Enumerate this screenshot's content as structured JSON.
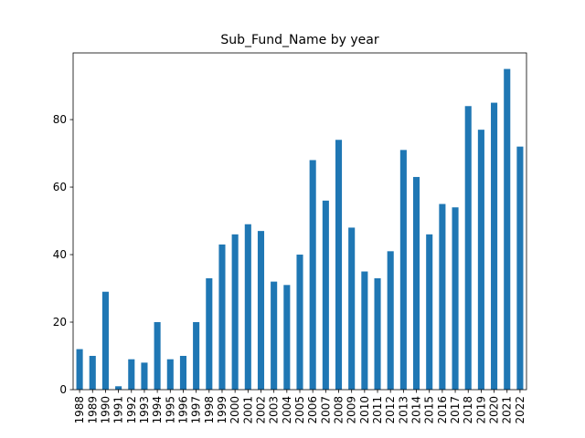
{
  "chart_data": {
    "type": "bar",
    "title": "Sub_Fund_Name by year",
    "xlabel": "",
    "ylabel": "",
    "categories": [
      "1988",
      "1989",
      "1990",
      "1991",
      "1992",
      "1993",
      "1994",
      "1995",
      "1996",
      "1997",
      "1998",
      "1999",
      "2000",
      "2001",
      "2002",
      "2003",
      "2004",
      "2005",
      "2006",
      "2007",
      "2008",
      "2009",
      "2010",
      "2011",
      "2012",
      "2013",
      "2014",
      "2015",
      "2016",
      "2017",
      "2018",
      "2019",
      "2020",
      "2021",
      "2022"
    ],
    "values": [
      12,
      10,
      29,
      1,
      9,
      8,
      20,
      9,
      10,
      20,
      33,
      43,
      46,
      49,
      47,
      32,
      31,
      40,
      68,
      56,
      74,
      48,
      35,
      33,
      41,
      71,
      63,
      46,
      55,
      54,
      84,
      77,
      85,
      95,
      72
    ],
    "ylim": [
      0,
      99.75
    ],
    "yticks": [
      0,
      20,
      40,
      60,
      80
    ],
    "bar_color": "#1f77b4",
    "grid": false,
    "legend": "none"
  }
}
